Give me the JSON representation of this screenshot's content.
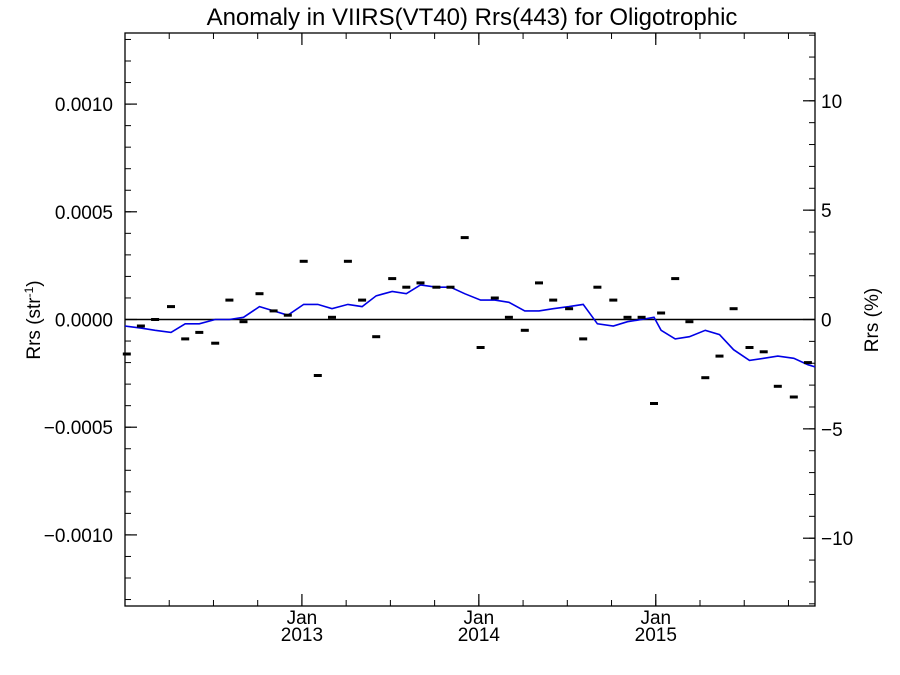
{
  "chart_data": {
    "type": "line",
    "title": "Anomaly in VIIRS(VT40) Rrs(443) for Oligotrophic",
    "ylabel_left": "Rrs (str",
    "ylabel_left_sup": "-1",
    "ylabel_left_suffix": ")",
    "ylabel_right": "Rrs (%)",
    "xlabel": "",
    "xlim": [
      2012.0,
      2015.9
    ],
    "ylim": [
      -0.00133,
      0.00133
    ],
    "ylim_right": [
      -13.1,
      13.1
    ],
    "grid": false,
    "legend": "none",
    "colors": {
      "line": "#0000e6",
      "points": "#000000",
      "zero_line": "#000000"
    },
    "x_ticks": [
      {
        "x": 2013.0,
        "label": "Jan",
        "year": "2013"
      },
      {
        "x": 2014.0,
        "label": "Jan",
        "year": "2014"
      },
      {
        "x": 2015.0,
        "label": "Jan",
        "year": "2015"
      }
    ],
    "y_ticks_left": [
      {
        "y": 0.001,
        "label": "0.0010"
      },
      {
        "y": 0.0005,
        "label": "0.0005"
      },
      {
        "y": 0.0,
        "label": "0.0000"
      },
      {
        "y": -0.0005,
        "label": "−0.0005"
      },
      {
        "y": -0.001,
        "label": "−0.0010"
      }
    ],
    "y_ticks_right": [
      {
        "y": 10,
        "label": "10"
      },
      {
        "y": 5,
        "label": "5"
      },
      {
        "y": 0,
        "label": "0"
      },
      {
        "y": -5,
        "label": "−5"
      },
      {
        "y": -10,
        "label": "−10"
      }
    ],
    "series": [
      {
        "kind": "points",
        "x": [
          2012.01,
          2012.09,
          2012.17,
          2012.26,
          2012.34,
          2012.42,
          2012.51,
          2012.59,
          2012.67,
          2012.76,
          2012.84,
          2012.92,
          2013.01,
          2013.09,
          2013.17,
          2013.26,
          2013.34,
          2013.42,
          2013.51,
          2013.59,
          2013.67,
          2013.76,
          2013.84,
          2013.92,
          2014.01,
          2014.09,
          2014.17,
          2014.26,
          2014.34,
          2014.42,
          2014.51,
          2014.59,
          2014.67,
          2014.76,
          2014.84,
          2014.92,
          2014.99,
          2015.03,
          2015.11,
          2015.19,
          2015.28,
          2015.36,
          2015.44,
          2015.53,
          2015.61,
          2015.69,
          2015.78,
          2015.86
        ],
        "y": [
          -0.00016,
          -3e-05,
          0.0,
          6e-05,
          -9e-05,
          -6e-05,
          -0.00011,
          9e-05,
          -1e-05,
          0.00012,
          4e-05,
          2e-05,
          0.00027,
          -0.00026,
          1e-05,
          0.00027,
          9e-05,
          -8e-05,
          0.00019,
          0.00015,
          0.00017,
          0.00015,
          0.00015,
          0.00038,
          -0.00013,
          0.0001,
          1e-05,
          -5e-05,
          0.00017,
          9e-05,
          5e-05,
          -9e-05,
          0.00015,
          9e-05,
          1e-05,
          1e-05,
          -0.00039,
          3e-05,
          0.00019,
          -1e-05,
          -0.00027,
          -0.00017,
          5e-05,
          -0.00013,
          -0.00015,
          -0.00031,
          -0.00036,
          -0.0002
        ]
      },
      {
        "kind": "line",
        "x": [
          2012.0,
          2012.09,
          2012.17,
          2012.26,
          2012.34,
          2012.42,
          2012.51,
          2012.59,
          2012.67,
          2012.76,
          2012.84,
          2012.92,
          2013.01,
          2013.09,
          2013.17,
          2013.26,
          2013.34,
          2013.42,
          2013.51,
          2013.59,
          2013.67,
          2013.76,
          2013.84,
          2013.92,
          2014.01,
          2014.09,
          2014.17,
          2014.26,
          2014.34,
          2014.42,
          2014.51,
          2014.59,
          2014.67,
          2014.76,
          2014.84,
          2014.92,
          2014.99,
          2015.03,
          2015.11,
          2015.19,
          2015.28,
          2015.36,
          2015.44,
          2015.53,
          2015.61,
          2015.69,
          2015.78,
          2015.86,
          2015.9
        ],
        "y": [
          -3e-05,
          -4e-05,
          -5e-05,
          -6e-05,
          -2e-05,
          -2e-05,
          0.0,
          0.0,
          1e-05,
          6e-05,
          4e-05,
          2e-05,
          7e-05,
          7e-05,
          5e-05,
          7e-05,
          6e-05,
          0.00011,
          0.00013,
          0.00012,
          0.00016,
          0.00015,
          0.00015,
          0.00012,
          9e-05,
          9e-05,
          8e-05,
          4e-05,
          4e-05,
          5e-05,
          6e-05,
          7e-05,
          -2e-05,
          -3e-05,
          -1e-05,
          0.0,
          1e-05,
          -5e-05,
          -9e-05,
          -8e-05,
          -5e-05,
          -7e-05,
          -0.00014,
          -0.00019,
          -0.00018,
          -0.00017,
          -0.00018,
          -0.00021,
          -0.00022
        ]
      }
    ]
  }
}
